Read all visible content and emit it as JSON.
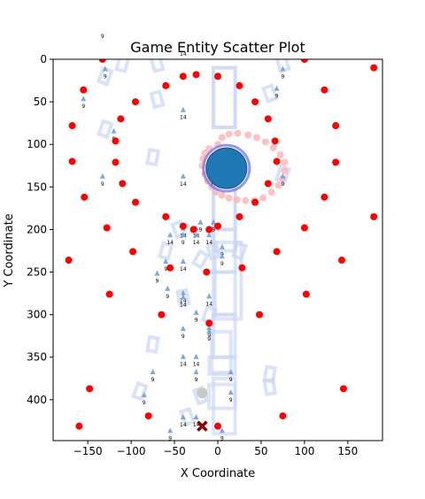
{
  "chart_data": {
    "type": "scatter",
    "title": "Game Entity Scatter Plot",
    "xlabel": "X Coordinate",
    "ylabel": "Y Coordinate",
    "xlim": [
      -190,
      190
    ],
    "ylim": [
      448,
      0
    ],
    "y_inverted": true,
    "grid": false,
    "xticks": [
      -150,
      -100,
      -50,
      0,
      50,
      100,
      150
    ],
    "yticks": [
      0,
      50,
      100,
      150,
      200,
      250,
      300,
      350,
      400
    ],
    "colors": {
      "red_points": "#ff0000",
      "player": "#1f77b4",
      "player_ring": "#7b7be8",
      "trail": "#ffb3b3",
      "rectangles": "#c9d6f5",
      "markers": "#7fa6d9",
      "cross": "#8b0000",
      "gray_dot": "#c8c8c8"
    },
    "red_points": [
      [
        -133,
        0
      ],
      [
        -25,
        18
      ],
      [
        -40,
        20
      ],
      [
        0,
        20
      ],
      [
        -60,
        31
      ],
      [
        25,
        31
      ],
      [
        100,
        0
      ],
      [
        180,
        10
      ],
      [
        -155,
        36
      ],
      [
        -95,
        50
      ],
      [
        43,
        50
      ],
      [
        123,
        36
      ],
      [
        -168,
        78
      ],
      [
        -112,
        70
      ],
      [
        58,
        70
      ],
      [
        136,
        78
      ],
      [
        -118,
        96
      ],
      [
        66,
        96
      ],
      [
        -168,
        120
      ],
      [
        -118,
        121
      ],
      [
        68,
        120
      ],
      [
        136,
        121
      ],
      [
        -110,
        146
      ],
      [
        58,
        146
      ],
      [
        -154,
        162
      ],
      [
        123,
        162
      ],
      [
        -95,
        168
      ],
      [
        43,
        168
      ],
      [
        -60,
        185
      ],
      [
        25,
        185
      ],
      [
        -28,
        200
      ],
      [
        -10,
        200
      ],
      [
        180,
        185
      ],
      [
        -40,
        196
      ],
      [
        0,
        196
      ],
      [
        -128,
        198
      ],
      [
        100,
        198
      ],
      [
        -98,
        226
      ],
      [
        68,
        226
      ],
      [
        -172,
        236
      ],
      [
        143,
        236
      ],
      [
        -55,
        245
      ],
      [
        28,
        245
      ],
      [
        -13,
        250
      ],
      [
        -125,
        276
      ],
      [
        102,
        276
      ],
      [
        -65,
        300
      ],
      [
        48,
        300
      ],
      [
        -10,
        310
      ],
      [
        -148,
        387
      ],
      [
        145,
        387
      ],
      [
        -80,
        419
      ],
      [
        75,
        419
      ],
      [
        -160,
        431
      ],
      [
        0,
        431
      ]
    ],
    "player": {
      "x": 10,
      "y": 128
    },
    "trail_points": [
      [
        0,
        100
      ],
      [
        -10,
        105
      ],
      [
        -15,
        110
      ],
      [
        -17,
        117
      ],
      [
        -18,
        125
      ],
      [
        -15,
        135
      ],
      [
        -12,
        143
      ],
      [
        -7,
        150
      ],
      [
        -2,
        156
      ],
      [
        5,
        160
      ],
      [
        13,
        163
      ],
      [
        22,
        165
      ],
      [
        32,
        166
      ],
      [
        42,
        166
      ],
      [
        52,
        163
      ],
      [
        62,
        156
      ],
      [
        70,
        148
      ],
      [
        75,
        140
      ],
      [
        77,
        131
      ],
      [
        77,
        121
      ],
      [
        72,
        112
      ],
      [
        64,
        104
      ],
      [
        55,
        97
      ],
      [
        45,
        92
      ],
      [
        35,
        89
      ],
      [
        23,
        87
      ],
      [
        13,
        88
      ],
      [
        5,
        92
      ]
    ],
    "gray_point": [
      -18,
      392
    ],
    "cross": [
      -18,
      431
    ],
    "rectangles": [
      [
        -5,
        10,
        20,
        80
      ],
      [
        -5,
        150,
        20,
        225
      ],
      [
        -3,
        215,
        27,
        305
      ],
      [
        -7,
        320,
        15,
        368
      ],
      [
        -5,
        375,
        20,
        440
      ],
      [
        -5,
        10,
        20,
        80
      ],
      [
        -5,
        130,
        20,
        200
      ],
      [
        -5,
        200,
        20,
        250
      ],
      [
        -5,
        250,
        20,
        300
      ],
      [
        -5,
        300,
        20,
        350
      ],
      [
        -10,
        350,
        20,
        370
      ],
      [
        -10,
        382,
        20,
        410
      ]
    ],
    "tilted_rectangles": [
      [
        -75,
        115,
        10,
        16,
        10
      ],
      [
        -70,
        47,
        10,
        16,
        -15
      ],
      [
        -130,
        20,
        10,
        16,
        20
      ],
      [
        -45,
        200,
        10,
        16,
        -20
      ],
      [
        -60,
        225,
        10,
        16,
        15
      ],
      [
        -20,
        235,
        10,
        16,
        30
      ],
      [
        -40,
        280,
        10,
        16,
        -10
      ],
      [
        -10,
        300,
        10,
        16,
        20
      ],
      [
        -75,
        335,
        10,
        16,
        10
      ],
      [
        -20,
        395,
        10,
        16,
        -20
      ],
      [
        60,
        40,
        10,
        16,
        -20
      ],
      [
        75,
        135,
        10,
        16,
        20
      ],
      [
        -5,
        225,
        10,
        16,
        -15
      ],
      [
        25,
        225,
        10,
        16,
        20
      ],
      [
        60,
        370,
        10,
        16,
        10
      ],
      [
        60,
        385,
        10,
        16,
        -10
      ],
      [
        -90,
        390,
        10,
        16,
        20
      ],
      [
        -35,
        420,
        10,
        16,
        -20
      ],
      [
        -130,
        82,
        10,
        16,
        20
      ],
      [
        -70,
        5,
        10,
        16,
        -15
      ],
      [
        -110,
        5,
        10,
        16,
        15
      ],
      [
        75,
        5,
        10,
        16,
        -15
      ]
    ],
    "markers": [
      [
        -130,
        12,
        "9"
      ],
      [
        -155,
        47,
        "9"
      ],
      [
        -120,
        85,
        "9"
      ],
      [
        -40,
        60,
        "14"
      ],
      [
        75,
        12,
        "9"
      ],
      [
        68,
        35,
        "9"
      ],
      [
        -133,
        138,
        "9"
      ],
      [
        -40,
        138,
        "14"
      ],
      [
        -5,
        138,
        "14"
      ],
      [
        75,
        138,
        "9"
      ],
      [
        -40,
        199,
        "14"
      ],
      [
        -25,
        199,
        "14"
      ],
      [
        -20,
        192,
        "9"
      ],
      [
        -5,
        192,
        "9"
      ],
      [
        -55,
        207,
        "14"
      ],
      [
        -40,
        207,
        "9"
      ],
      [
        -25,
        207,
        "14"
      ],
      [
        -10,
        207,
        "14"
      ],
      [
        -60,
        238,
        "9"
      ],
      [
        -40,
        238,
        "14"
      ],
      [
        5,
        221,
        "9"
      ],
      [
        5,
        232,
        "9"
      ],
      [
        -70,
        252,
        "9"
      ],
      [
        -58,
        270,
        "9"
      ],
      [
        -40,
        275,
        "14"
      ],
      [
        -40,
        280,
        "14"
      ],
      [
        -10,
        279,
        "14"
      ],
      [
        -25,
        298,
        "9"
      ],
      [
        -40,
        317,
        "9"
      ],
      [
        -10,
        316,
        "9"
      ],
      [
        -10,
        320,
        "9"
      ],
      [
        -40,
        350,
        "14"
      ],
      [
        -25,
        350,
        "14"
      ],
      [
        -75,
        368,
        "9"
      ],
      [
        -25,
        368,
        "9"
      ],
      [
        15,
        368,
        "9"
      ],
      [
        -85,
        395,
        "9"
      ],
      [
        15,
        392,
        "9"
      ],
      [
        -40,
        421,
        "14"
      ],
      [
        -25,
        421,
        "14"
      ],
      [
        -55,
        437,
        "9"
      ],
      [
        5,
        437,
        "9"
      ]
    ],
    "extra_labels": [
      [
        -133,
        -25,
        "9"
      ],
      [
        -40,
        -4,
        "14"
      ]
    ]
  }
}
